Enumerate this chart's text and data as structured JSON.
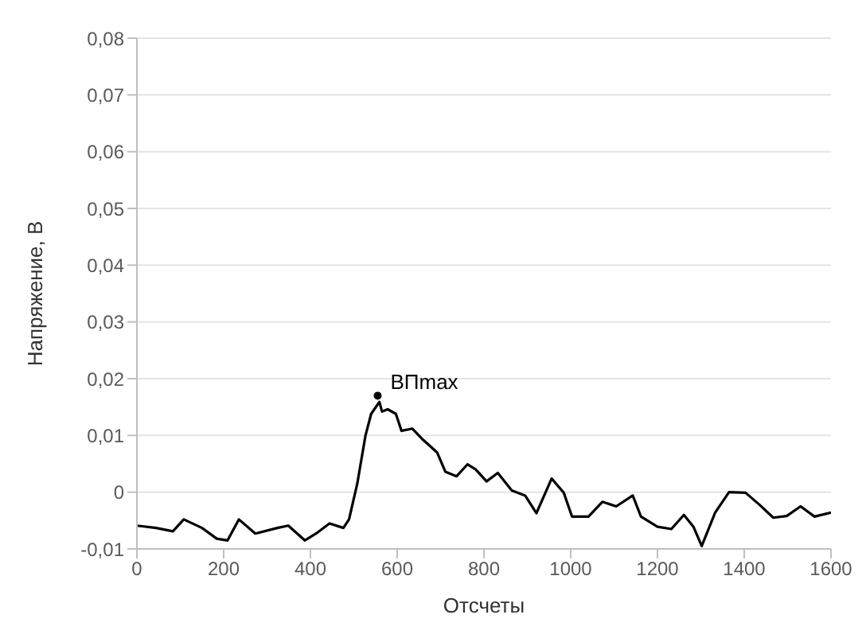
{
  "chart_data": {
    "type": "line",
    "xlabel": "Отсчеты",
    "ylabel": "Напряжение, В",
    "x": [
      0,
      44,
      83,
      108,
      150,
      184,
      209,
      235,
      273,
      324,
      349,
      387,
      413,
      444,
      476,
      489,
      508,
      527,
      540,
      559,
      565,
      578,
      597,
      610,
      635,
      660,
      692,
      711,
      737,
      762,
      781,
      806,
      832,
      864,
      895,
      921,
      956,
      984,
      1003,
      1041,
      1073,
      1105,
      1143,
      1162,
      1200,
      1232,
      1261,
      1283,
      1302,
      1333,
      1365,
      1403,
      1435,
      1467,
      1498,
      1530,
      1562,
      1600
    ],
    "series": [
      {
        "color": "#000000",
        "values": [
          -0.0059,
          -0.0063,
          -0.0069,
          -0.0048,
          -0.0063,
          -0.0082,
          -0.0085,
          -0.0048,
          -0.0073,
          -0.0063,
          -0.0059,
          -0.0085,
          -0.0073,
          -0.0055,
          -0.0063,
          -0.0048,
          0.0015,
          0.01,
          0.0138,
          0.0159,
          0.0142,
          0.0146,
          0.0138,
          0.0108,
          0.0112,
          0.0092,
          0.007,
          0.0036,
          0.0028,
          0.0049,
          0.004,
          0.0019,
          0.0034,
          0.0003,
          -0.0006,
          -0.0037,
          0.0024,
          -0.0001,
          -0.0043,
          -0.0043,
          -0.0017,
          -0.0025,
          -0.0006,
          -0.0043,
          -0.0061,
          -0.0065,
          -0.004,
          -0.0061,
          -0.0095,
          -0.0036,
          0.0,
          -0.0001,
          -0.0022,
          -0.0045,
          -0.0042,
          -0.0025,
          -0.0043,
          -0.0036
        ]
      }
    ],
    "xlim": [
      0,
      1600
    ],
    "xticks": [
      0,
      200,
      400,
      600,
      800,
      1000,
      1200,
      1400,
      1600
    ],
    "ylim": [
      -0.01,
      0.08
    ],
    "yticks": [
      {
        "value": -0.01,
        "label": "-0,01"
      },
      0,
      {
        "value": 0.01,
        "label": "0,01"
      },
      {
        "value": 0.02,
        "label": "0,02"
      },
      {
        "value": 0.03,
        "label": "0,03"
      },
      {
        "value": 0.04,
        "label": "0,04"
      },
      {
        "value": 0.05,
        "label": "0,05"
      },
      {
        "value": 0.06,
        "label": "0,06"
      },
      {
        "value": 0.07,
        "label": "0,07"
      },
      {
        "value": 0.08,
        "label": "0,08"
      }
    ],
    "grid": "y",
    "marker": "none",
    "line_style": "solid",
    "legend": false,
    "annotations": [
      {
        "text": "ВПmax",
        "x": 555,
        "y": 0.017
      }
    ]
  }
}
